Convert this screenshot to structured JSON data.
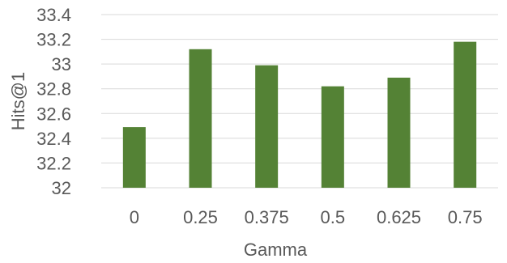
{
  "chart_data": {
    "type": "bar",
    "categories": [
      "0",
      "0.25",
      "0.375",
      "0.5",
      "0.625",
      "0.75"
    ],
    "values": [
      32.49,
      33.12,
      32.99,
      32.82,
      32.89,
      33.18
    ],
    "title": "",
    "xlabel": "Gamma",
    "ylabel": "Hits@1",
    "ylim": [
      32,
      33.4
    ],
    "yticks": [
      "32",
      "32.2",
      "32.4",
      "32.6",
      "32.8",
      "33",
      "33.2",
      "33.4"
    ],
    "grid": true,
    "legend": "none",
    "bar_color": "#548235",
    "grid_color": "#d9d9d9",
    "text_color": "#595959"
  }
}
